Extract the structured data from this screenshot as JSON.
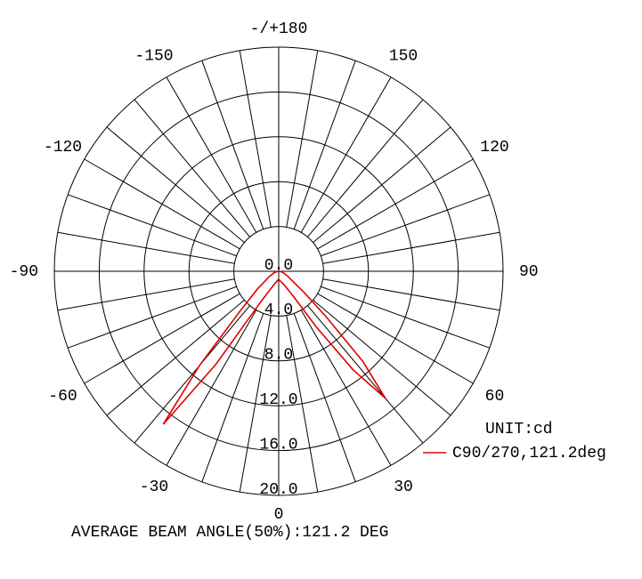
{
  "chart_data": {
    "type": "polar",
    "unit_label": "UNIT:cd",
    "footer": "AVERAGE BEAM ANGLE(50%):121.2 DEG",
    "rlim": [
      0,
      20
    ],
    "rticks": [
      {
        "value": 0,
        "label": "0.0"
      },
      {
        "value": 4,
        "label": "4.0"
      },
      {
        "value": 8,
        "label": "8.0"
      },
      {
        "value": 12,
        "label": "12.0"
      },
      {
        "value": 16,
        "label": "16.0"
      },
      {
        "value": 20,
        "label": "20.0"
      }
    ],
    "angle_ticks": [
      {
        "value": 180,
        "label": "-/+180"
      },
      150,
      120,
      90,
      60,
      30,
      0,
      -30,
      -60,
      -90,
      -120,
      -150
    ],
    "x": [
      -90,
      -80,
      -70,
      -60,
      -50,
      -44,
      -40,
      -37,
      -34,
      -30,
      -20,
      -10,
      0,
      10,
      20,
      30,
      34,
      37,
      40,
      43,
      46,
      50,
      60,
      70,
      80,
      90
    ],
    "series": [
      {
        "name": "C90/270,121.2deg",
        "color": "#e00000",
        "values": [
          0,
          0.2,
          0.5,
          1,
          2.5,
          5,
          11,
          17.1,
          10,
          3,
          1.3,
          0.9,
          0.7,
          0.9,
          1.2,
          2.5,
          6,
          11,
          14.8,
          11,
          6,
          3,
          1,
          0.5,
          0.2,
          0
        ]
      }
    ]
  }
}
